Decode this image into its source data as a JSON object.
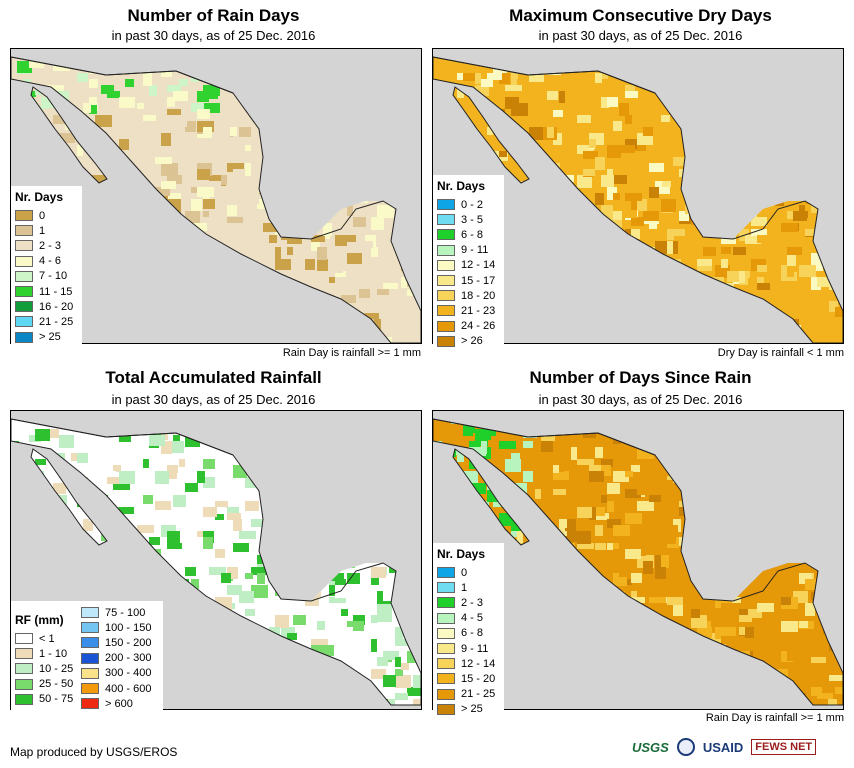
{
  "footer": {
    "credit": "Map produced by USGS/EROS",
    "logos": [
      "USGS",
      "USAID",
      "FEWS NET"
    ]
  },
  "panels": [
    {
      "id": "rain-days",
      "title": "Number of Rain Days",
      "subtitle": "in past 30 days, as of 25 Dec. 2016",
      "note": "Rain Day is rainfall >= 1 mm",
      "legend_title": "Nr. Days",
      "classes": [
        {
          "label": "0",
          "color": "#c9a24a"
        },
        {
          "label": "1",
          "color": "#dcc393"
        },
        {
          "label": "2 - 3",
          "color": "#eee0c4"
        },
        {
          "label": "4 - 6",
          "color": "#fafac8"
        },
        {
          "label": "7 - 10",
          "color": "#cdf5c8"
        },
        {
          "label": "11 - 15",
          "color": "#2fd22f"
        },
        {
          "label": "16 - 20",
          "color": "#119d3c"
        },
        {
          "label": "21 - 25",
          "color": "#5fd6f2"
        },
        {
          "label": "> 25",
          "color": "#0b86c5"
        }
      ],
      "land_color": "#eee0c4",
      "accent_color": "#c9a24a"
    },
    {
      "id": "max-dry-days",
      "title": "Maximum Consecutive Dry Days",
      "subtitle": "in past 30 days, as of 25 Dec. 2016",
      "note": "Dry Day is rainfall < 1 mm",
      "legend_title": "Nr. Days",
      "classes": [
        {
          "label": "0 - 2",
          "color": "#0ea5e6"
        },
        {
          "label": "3 - 5",
          "color": "#6fdcf2"
        },
        {
          "label": "6 - 8",
          "color": "#1fcf2a"
        },
        {
          "label": "9 - 11",
          "color": "#b8f4bd"
        },
        {
          "label": "12 - 14",
          "color": "#fbfac3"
        },
        {
          "label": "15 - 17",
          "color": "#fae98a"
        },
        {
          "label": "18 - 20",
          "color": "#f8d35a"
        },
        {
          "label": "21 - 23",
          "color": "#f2b31f"
        },
        {
          "label": "24 - 26",
          "color": "#e59808"
        },
        {
          "label": "> 26",
          "color": "#c98205"
        }
      ],
      "land_color": "#f2b31f",
      "accent_color": "#fbfac3"
    },
    {
      "id": "total-rainfall",
      "title": "Total Accumulated Rainfall",
      "subtitle": "in past 30 days, as of 25 Dec. 2016",
      "note": "",
      "legend_title": "RF (mm)",
      "classes": [
        {
          "label": "< 1",
          "color": "#ffffff"
        },
        {
          "label": "1 - 10",
          "color": "#eedcb8"
        },
        {
          "label": "10 - 25",
          "color": "#bfeec4"
        },
        {
          "label": "25 - 50",
          "color": "#78db6c"
        },
        {
          "label": "50 - 75",
          "color": "#2fc02f"
        }
      ],
      "classes2": [
        {
          "label": "75 - 100",
          "color": "#bfe9fa"
        },
        {
          "label": "100 - 150",
          "color": "#74c5f2"
        },
        {
          "label": "150 - 200",
          "color": "#3a8ee8"
        },
        {
          "label": "200 - 300",
          "color": "#1a55d6"
        },
        {
          "label": "300 - 400",
          "color": "#f8e38a"
        },
        {
          "label": "400 - 600",
          "color": "#f29a0c"
        },
        {
          "label": "> 600",
          "color": "#ee2a12"
        }
      ],
      "land_color": "#ffffff",
      "accent_color": "#78db6c"
    },
    {
      "id": "days-since-rain",
      "title": "Number of Days Since Rain",
      "subtitle": "in past 30 days, as of 25 Dec. 2016",
      "note": "Rain Day is rainfall >= 1 mm",
      "legend_title": "Nr. Days",
      "classes": [
        {
          "label": "0",
          "color": "#0ea5e6"
        },
        {
          "label": "1",
          "color": "#6fdcf2"
        },
        {
          "label": "2 - 3",
          "color": "#1fcf2a"
        },
        {
          "label": "4 - 5",
          "color": "#b8f4bd"
        },
        {
          "label": "6 - 8",
          "color": "#fbfac3"
        },
        {
          "label": "9 - 11",
          "color": "#fae98a"
        },
        {
          "label": "12 - 14",
          "color": "#f8d35a"
        },
        {
          "label": "15 - 20",
          "color": "#f2b31f"
        },
        {
          "label": "21 - 25",
          "color": "#e59808"
        },
        {
          "label": "> 25",
          "color": "#c98205"
        }
      ],
      "land_color": "#e59808",
      "accent_color": "#1fcf2a"
    }
  ]
}
